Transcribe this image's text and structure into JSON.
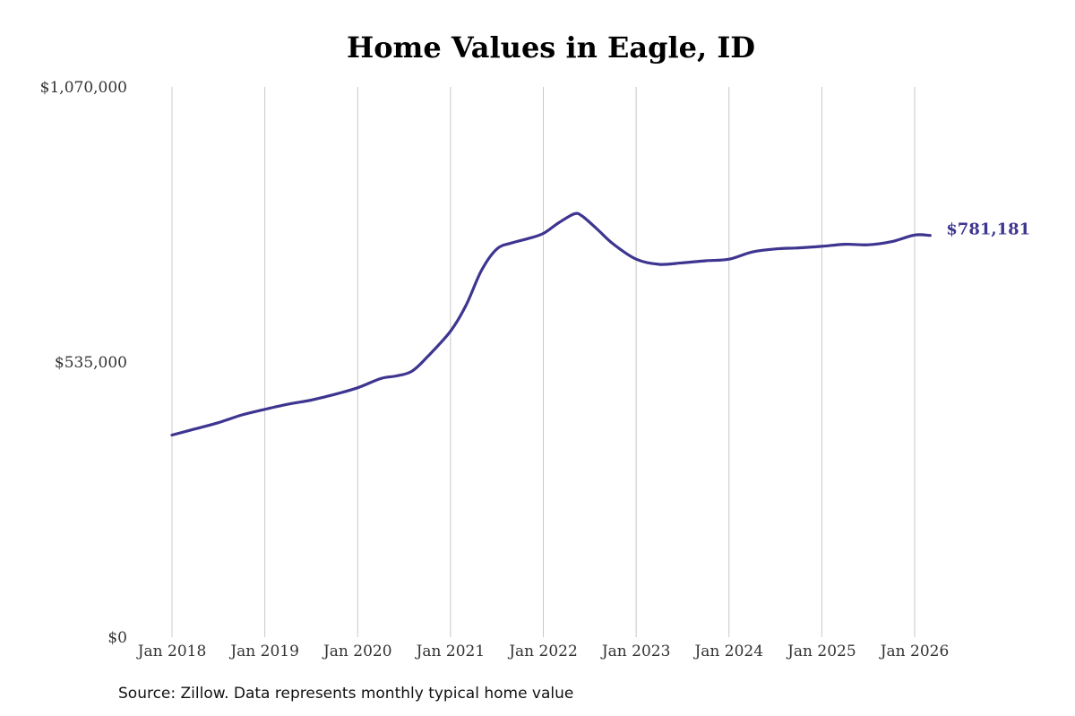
{
  "chart_data": {
    "type": "line",
    "title": "Home Values in Eagle, ID",
    "source": "Source: Zillow. Data represents monthly typical home value",
    "y_ticks": [
      {
        "value": 0,
        "label": "$0"
      },
      {
        "value": 535000,
        "label": "$535,000"
      },
      {
        "value": 1070000,
        "label": "$1,070,000"
      }
    ],
    "ylim": [
      0,
      1070000
    ],
    "x_ticks": [
      {
        "value": 2018,
        "label": "Jan 2018"
      },
      {
        "value": 2019,
        "label": "Jan 2019"
      },
      {
        "value": 2020,
        "label": "Jan 2020"
      },
      {
        "value": 2021,
        "label": "Jan 2021"
      },
      {
        "value": 2022,
        "label": "Jan 2022"
      },
      {
        "value": 2023,
        "label": "Jan 2023"
      },
      {
        "value": 2024,
        "label": "Jan 2024"
      },
      {
        "value": 2025,
        "label": "Jan 2025"
      },
      {
        "value": 2026,
        "label": "Jan 2026"
      }
    ],
    "grid": {
      "vertical": true,
      "horizontal": false
    },
    "line_color": "#3d3590",
    "end_label": "$781,181",
    "series": [
      {
        "x": [
          "2018-01",
          "2018-04",
          "2018-07",
          "2018-10",
          "2019-01",
          "2019-04",
          "2019-07",
          "2019-10",
          "2020-01",
          "2020-04",
          "2020-06",
          "2020-08",
          "2020-10",
          "2021-01",
          "2021-03",
          "2021-05",
          "2021-07",
          "2021-09",
          "2021-11",
          "2022-01",
          "2022-03",
          "2022-05",
          "2022-06",
          "2022-08",
          "2022-10",
          "2023-01",
          "2023-04",
          "2023-07",
          "2023-10",
          "2024-01",
          "2024-04",
          "2024-07",
          "2024-10",
          "2025-01",
          "2025-04",
          "2025-07",
          "2025-10",
          "2026-01",
          "2026-03"
        ],
        "y": [
          393000,
          405000,
          417000,
          432000,
          443000,
          453000,
          461000,
          472000,
          485000,
          503000,
          508000,
          517000,
          545000,
          595000,
          645000,
          713000,
          755000,
          767000,
          775000,
          785000,
          806000,
          823000,
          819000,
          793000,
          765000,
          735000,
          725000,
          728000,
          732000,
          735000,
          749000,
          755000,
          757000,
          760000,
          764000,
          763000,
          769000,
          782000,
          781181
        ]
      }
    ]
  }
}
